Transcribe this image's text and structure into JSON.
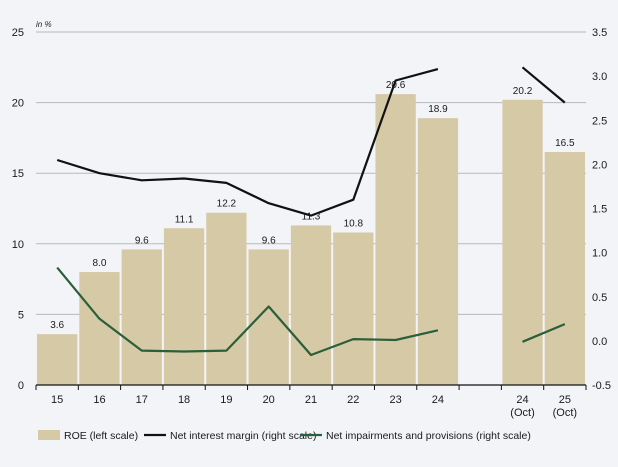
{
  "chart_data": {
    "type": "bar",
    "unit_label": "in %",
    "categories": [
      "15",
      "16",
      "17",
      "18",
      "19",
      "20",
      "21",
      "22",
      "23",
      "24",
      "",
      "24\n(Oct)",
      "25\n(Oct)"
    ],
    "category_lines": [
      [
        "15"
      ],
      [
        "16"
      ],
      [
        "17"
      ],
      [
        "18"
      ],
      [
        "19"
      ],
      [
        "20"
      ],
      [
        "21"
      ],
      [
        "22"
      ],
      [
        "23"
      ],
      [
        "24"
      ],
      [],
      [
        "24",
        "(Oct)"
      ],
      [
        "25",
        "(Oct)"
      ]
    ],
    "left_axis": {
      "min": 0,
      "max": 25,
      "ticks": [
        "0",
        "5",
        "10",
        "15",
        "20",
        "25"
      ],
      "tick_values": [
        0,
        5,
        10,
        15,
        20,
        25
      ]
    },
    "right_axis": {
      "min": -0.5,
      "max": 3.5,
      "ticks": [
        "-0.5",
        "0.0",
        "0.5",
        "1.0",
        "1.5",
        "2.0",
        "2.5",
        "3.0",
        "3.5"
      ],
      "tick_values": [
        -0.5,
        0,
        0.5,
        1,
        1.5,
        2,
        2.5,
        3,
        3.5
      ]
    },
    "grid": true,
    "legend_position": "bottom",
    "series": [
      {
        "name": "ROE (left scale)",
        "kind": "bar",
        "axis": "left",
        "color": "#d6c9a6",
        "values": [
          3.6,
          8.0,
          9.6,
          11.1,
          12.2,
          9.6,
          11.3,
          10.8,
          20.6,
          18.9,
          null,
          20.2,
          16.5
        ],
        "labels": [
          "3.6",
          "8.0",
          "9.6",
          "11.1",
          "12.2",
          "9.6",
          "11.3",
          "10.8",
          "20.6",
          "18.9",
          "",
          "20.2",
          "16.5"
        ]
      },
      {
        "name": "Net interest margin (right scale)",
        "kind": "line",
        "axis": "right",
        "color": "#111111",
        "segments": [
          [
            0,
            9
          ],
          [
            11,
            12
          ]
        ],
        "values": [
          2.05,
          1.9,
          1.82,
          1.84,
          1.79,
          1.56,
          1.42,
          1.6,
          2.95,
          3.08,
          null,
          3.1,
          2.7
        ]
      },
      {
        "name": "Net impairments and provisions (right scale)",
        "kind": "line",
        "axis": "right",
        "color": "#2b5e3b",
        "segments": [
          [
            0,
            9
          ],
          [
            11,
            12
          ]
        ],
        "values": [
          0.83,
          0.25,
          -0.11,
          -0.12,
          -0.11,
          0.39,
          -0.16,
          0.02,
          0.01,
          0.12,
          null,
          -0.01,
          0.19
        ]
      }
    ]
  },
  "legend": {
    "items": [
      {
        "label": "ROE (left scale)",
        "swatch": "box",
        "color": "#d6c9a6"
      },
      {
        "label": "Net interest margin (right scale)",
        "swatch": "line",
        "color": "#111111"
      },
      {
        "label": "Net impairments and provisions (right scale)",
        "swatch": "line",
        "color": "#2b5e3b"
      }
    ]
  }
}
